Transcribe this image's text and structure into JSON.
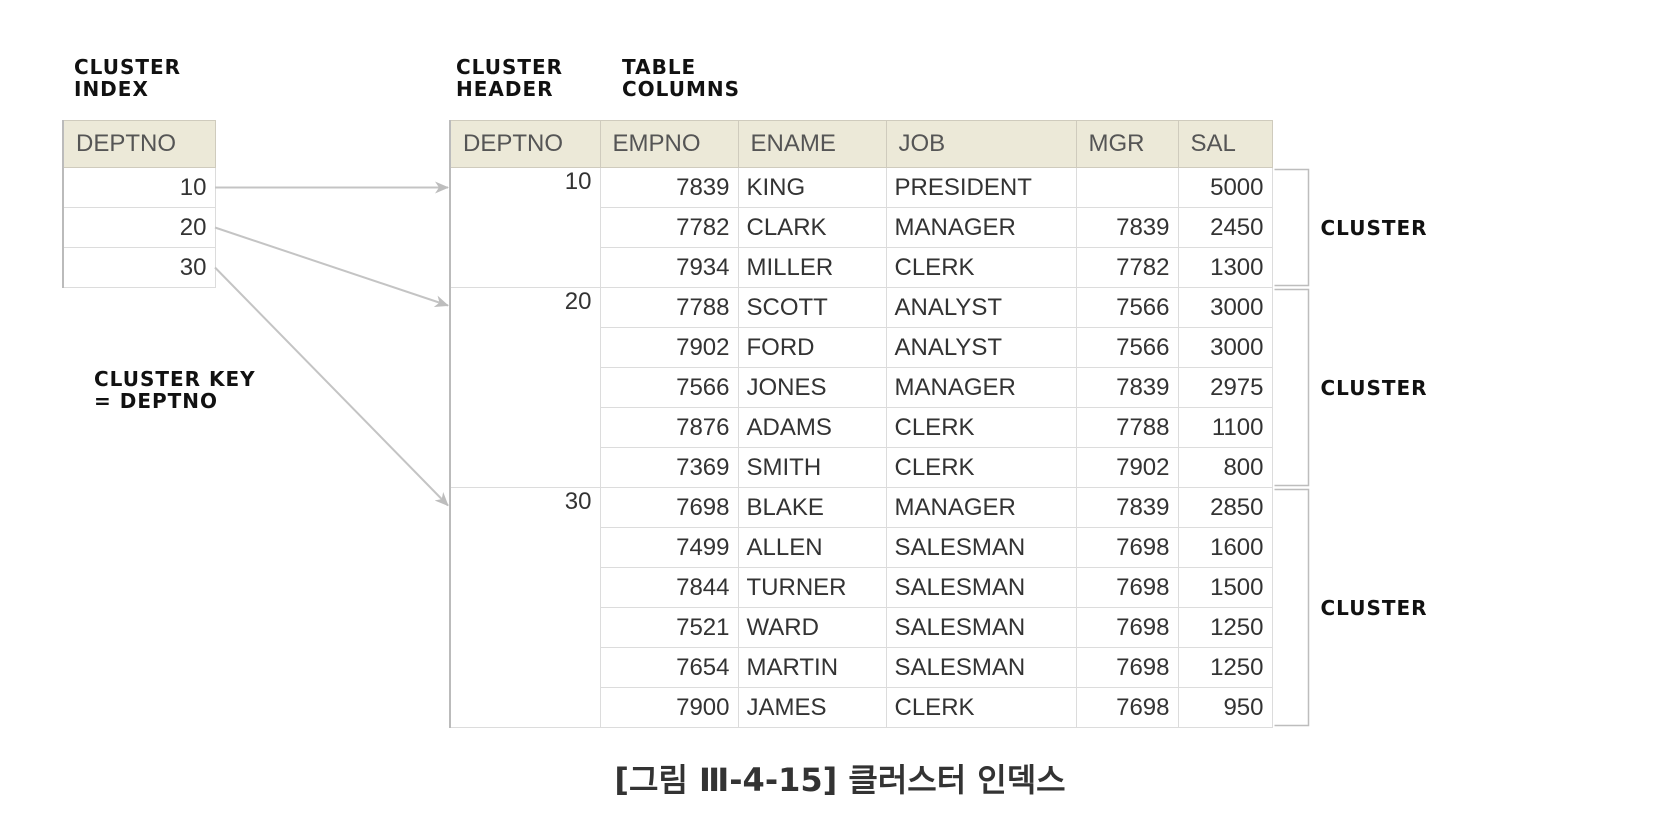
{
  "labels": {
    "cluster_index": "CLUSTER\nINDEX",
    "cluster_header": "CLUSTER\nHEADER",
    "table_columns": "TABLE\nCOLUMNS",
    "cluster_key": "CLUSTER KEY\n= DEPTNO"
  },
  "index_table": {
    "header": "DEPTNO",
    "values": [
      "10",
      "20",
      "30"
    ]
  },
  "main_table": {
    "headers": [
      "DEPTNO",
      "EMPNO",
      "ENAME",
      "JOB",
      "MGR",
      "SAL"
    ],
    "groups": [
      {
        "deptno": "10",
        "cluster_label": "CLUSTER",
        "rows": [
          {
            "empno": "7839",
            "ename": "KING",
            "job": "PRESIDENT",
            "mgr": "",
            "sal": "5000"
          },
          {
            "empno": "7782",
            "ename": "CLARK",
            "job": "MANAGER",
            "mgr": "7839",
            "sal": "2450"
          },
          {
            "empno": "7934",
            "ename": "MILLER",
            "job": "CLERK",
            "mgr": "7782",
            "sal": "1300"
          }
        ]
      },
      {
        "deptno": "20",
        "cluster_label": "CLUSTER",
        "rows": [
          {
            "empno": "7788",
            "ename": "SCOTT",
            "job": "ANALYST",
            "mgr": "7566",
            "sal": "3000"
          },
          {
            "empno": "7902",
            "ename": "FORD",
            "job": "ANALYST",
            "mgr": "7566",
            "sal": "3000"
          },
          {
            "empno": "7566",
            "ename": "JONES",
            "job": "MANAGER",
            "mgr": "7839",
            "sal": "2975"
          },
          {
            "empno": "7876",
            "ename": "ADAMS",
            "job": "CLERK",
            "mgr": "7788",
            "sal": "1100"
          },
          {
            "empno": "7369",
            "ename": "SMITH",
            "job": "CLERK",
            "mgr": "7902",
            "sal": "800"
          }
        ]
      },
      {
        "deptno": "30",
        "cluster_label": "CLUSTER",
        "rows": [
          {
            "empno": "7698",
            "ename": "BLAKE",
            "job": "MANAGER",
            "mgr": "7839",
            "sal": "2850"
          },
          {
            "empno": "7499",
            "ename": "ALLEN",
            "job": "SALESMAN",
            "mgr": "7698",
            "sal": "1600"
          },
          {
            "empno": "7844",
            "ename": "TURNER",
            "job": "SALESMAN",
            "mgr": "7698",
            "sal": "1500"
          },
          {
            "empno": "7521",
            "ename": "WARD",
            "job": "SALESMAN",
            "mgr": "7698",
            "sal": "1250"
          },
          {
            "empno": "7654",
            "ename": "MARTIN",
            "job": "SALESMAN",
            "mgr": "7698",
            "sal": "1250"
          },
          {
            "empno": "7900",
            "ename": "JAMES",
            "job": "CLERK",
            "mgr": "7698",
            "sal": "950"
          }
        ]
      }
    ]
  },
  "caption": "[그림 Ⅲ-4-15] 클러스터 인덱스"
}
